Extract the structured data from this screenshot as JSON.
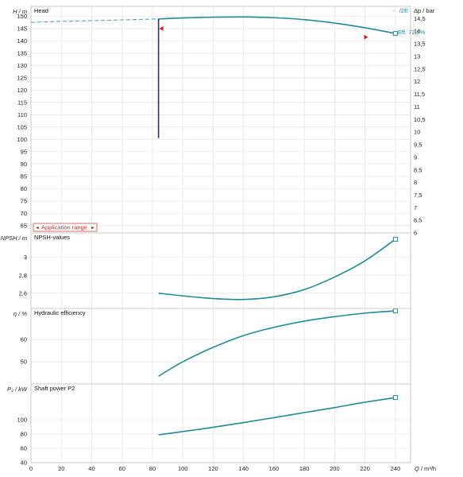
{
  "chart_data": {
    "type": "line",
    "x_axis": {
      "label_symbol": "Q",
      "label_unit": "m³/h",
      "range": [
        0,
        250
      ],
      "ticks": [
        0,
        20,
        40,
        60,
        80,
        100,
        120,
        140,
        160,
        180,
        200,
        220,
        240
      ]
    },
    "legend": {
      "dash": "-",
      "name": "/2E",
      "position": "top-right"
    },
    "panels": [
      {
        "id": "head",
        "title": "Head",
        "ylabel": "H  / m",
        "ylim": [
          62,
          154
        ],
        "yticks": [
          65,
          70,
          75,
          80,
          85,
          90,
          95,
          100,
          105,
          110,
          115,
          120,
          125,
          130,
          135,
          140,
          145,
          150
        ],
        "y2label": "Δp / bar",
        "y2lim": [
          6,
          14.98
        ],
        "y2ticks": [
          "14,5",
          "14",
          "13,5",
          "13",
          "12,5",
          "12",
          "11,5",
          "11",
          "10,5",
          "10",
          "9,5",
          "9",
          "8,5",
          "8",
          "7,5",
          "7",
          "6,5",
          "6"
        ],
        "y2tick_values": [
          14.5,
          14,
          13.5,
          13,
          12.5,
          12,
          11.5,
          11,
          10.5,
          10,
          9.5,
          9,
          8.5,
          8,
          7.5,
          7,
          6.5,
          6
        ],
        "dashed_series": {
          "x": [
            0,
            20,
            40,
            60,
            84
          ],
          "y": [
            147.5,
            147.9,
            148.2,
            148.5,
            148.9
          ]
        },
        "series": {
          "x": [
            84,
            100,
            120,
            140,
            160,
            180,
            200,
            220,
            240
          ],
          "y": [
            148.9,
            149.3,
            149.6,
            149.7,
            149.4,
            148.6,
            147.2,
            145.3,
            143.0
          ]
        },
        "vertical_marker": {
          "x": 84,
          "y_from": 100.5,
          "y_to": 148.9
        },
        "markers": [
          {
            "x": 84.5,
            "y": 145,
            "dir": "left"
          },
          {
            "x": 222,
            "y": 141.5,
            "dir": "right"
          }
        ],
        "efficiency_label": "Eff.  72,9%",
        "application_range": "Application range"
      },
      {
        "id": "npsh",
        "title": "NPSH-values",
        "ylabel": "NPSH  / m",
        "ylim": [
          2.43,
          3.27
        ],
        "yticks": [
          "2,6",
          "2,8",
          "3"
        ],
        "ytick_values": [
          2.6,
          2.8,
          3.0
        ],
        "series": {
          "x": [
            84,
            100,
            120,
            140,
            160,
            180,
            200,
            220,
            240
          ],
          "y": [
            2.6,
            2.57,
            2.54,
            2.53,
            2.56,
            2.64,
            2.78,
            2.96,
            3.2
          ]
        }
      },
      {
        "id": "eff",
        "title": "Hydraulic efficiency",
        "ylabel": "η  / %",
        "ylim": [
          40,
          74
        ],
        "yticks": [
          50,
          60
        ],
        "series": {
          "x": [
            84,
            100,
            120,
            140,
            160,
            180,
            200,
            220,
            240
          ],
          "y": [
            43.5,
            50.0,
            56.5,
            61.8,
            65.5,
            68.3,
            70.3,
            71.9,
            72.9
          ]
        }
      },
      {
        "id": "power",
        "title": "Shaft power P2",
        "ylabel": "P₂ / kW",
        "ylim": [
          40,
          150
        ],
        "yticks": [
          40,
          60,
          80,
          100
        ],
        "series": {
          "x": [
            84,
            100,
            120,
            140,
            160,
            180,
            200,
            220,
            240
          ],
          "y": [
            79,
            83.5,
            89.5,
            96,
            103,
            110,
            117,
            124.5,
            131
          ]
        }
      }
    ]
  }
}
